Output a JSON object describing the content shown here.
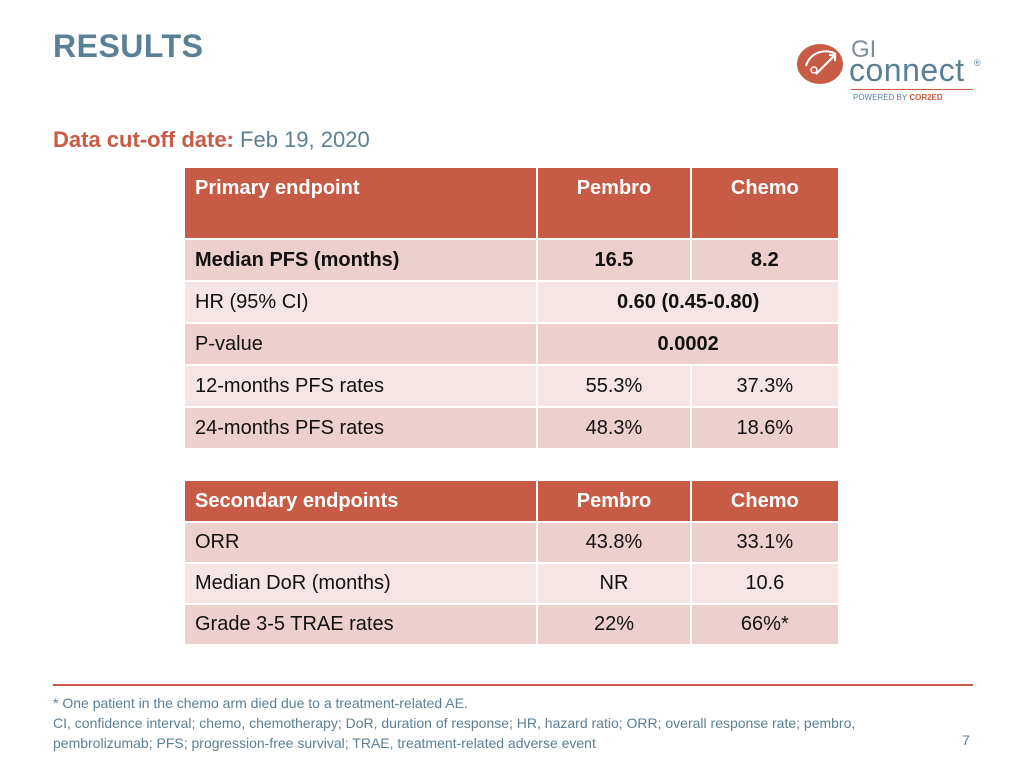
{
  "slide": {
    "title": "RESULTS",
    "page_number": "7"
  },
  "logo": {
    "gi": "GI",
    "connect": "connect",
    "reg": "®",
    "powered_prefix": "POWERED BY ",
    "powered_brand": "COR2ED"
  },
  "cutoff": {
    "label": "Data cut-off date:",
    "value": "Feb 19, 2020"
  },
  "primary": {
    "headers": [
      "Primary endpoint",
      "Pembro",
      "Chemo"
    ],
    "rows": [
      {
        "label": "Median PFS (months)",
        "pembro": "16.5",
        "chemo": "8.2"
      },
      {
        "label": "HR (95% CI)",
        "combined": "0.60 (0.45-0.80)"
      },
      {
        "label": "P-value",
        "combined": "0.0002"
      },
      {
        "label": "12-months PFS rates",
        "pembro": "55.3%",
        "chemo": "37.3%"
      },
      {
        "label": "24-months PFS rates",
        "pembro": "48.3%",
        "chemo": "18.6%"
      }
    ]
  },
  "secondary": {
    "headers": [
      "Secondary endpoints",
      "Pembro",
      "Chemo"
    ],
    "rows": [
      {
        "label": "ORR",
        "pembro": "43.8%",
        "chemo": "33.1%"
      },
      {
        "label": "Median DoR (months)",
        "pembro": "NR",
        "chemo": "10.6"
      },
      {
        "label": "Grade 3-5 TRAE rates",
        "pembro": "22%",
        "chemo": "66%*"
      }
    ]
  },
  "footnotes": {
    "line1": "* One patient in the chemo arm died due to a treatment-related AE.",
    "line2": "CI, confidence interval; chemo, chemotherapy; DoR, duration of response; HR, hazard ratio; ORR; overall response rate; pembro, pembrolizumab; PFS; progression-free survival; TRAE, treatment-related adverse event"
  },
  "colors": {
    "accent": "#c85b45",
    "title_blue": "#5b7f95",
    "row_dark": "#ecd0ce",
    "row_light": "#f5e6e5"
  }
}
